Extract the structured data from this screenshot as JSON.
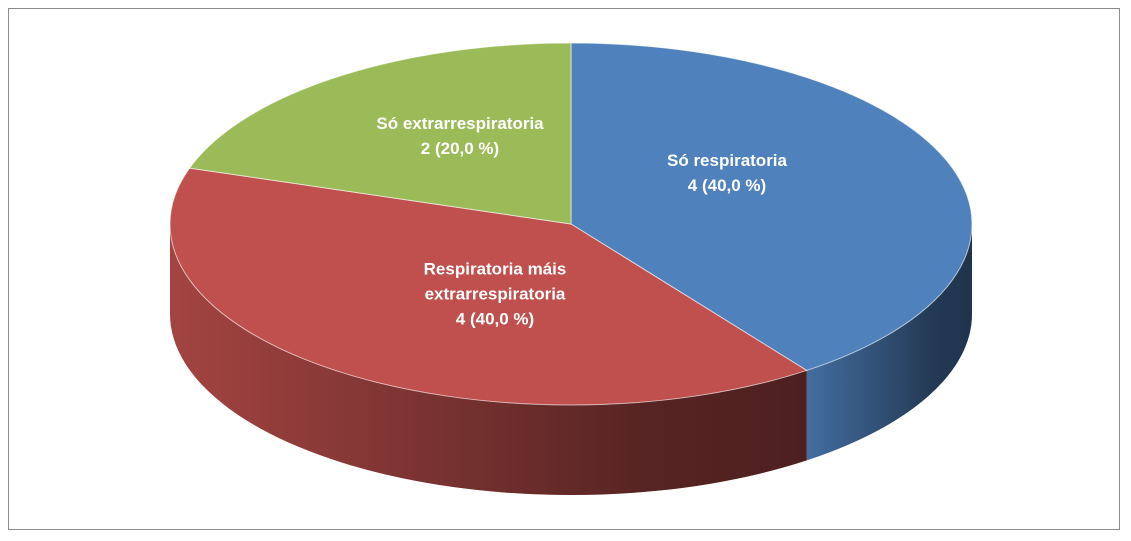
{
  "chart_data": {
    "type": "pie",
    "categories": [
      "Só respiratoria",
      "Respiratoria máis extrarrespiratoria",
      "Só extrarrespiratoria"
    ],
    "values": [
      4,
      4,
      2
    ],
    "value_labels": [
      "4  (40,0 %)",
      "4  (40,0 %)",
      "2  (20,0 %)"
    ],
    "colors": [
      "#4f81bd",
      "#c0504d",
      "#9bbb59"
    ]
  }
}
